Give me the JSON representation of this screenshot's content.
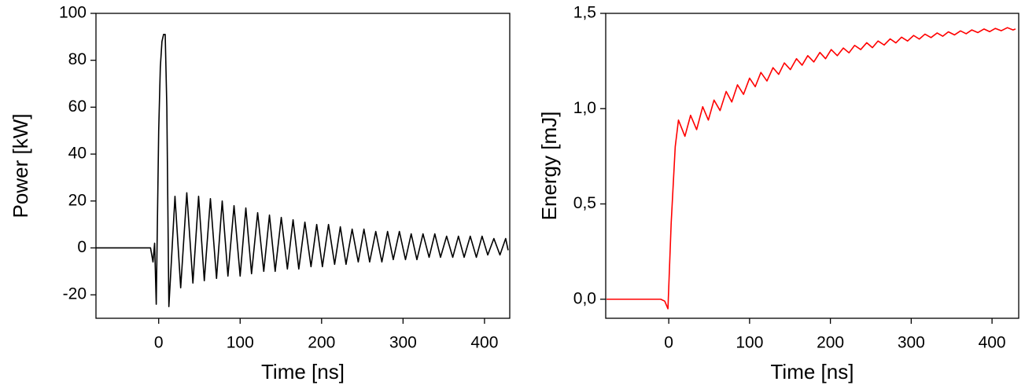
{
  "chart_data": [
    {
      "type": "line",
      "xlabel": "Time [ns]",
      "ylabel": "Power [kW]",
      "color": "#000000",
      "xlim": [
        -77,
        431
      ],
      "ylim": [
        -30,
        100
      ],
      "xticks": [
        0,
        100,
        200,
        300,
        400
      ],
      "yticks": [
        -20,
        0,
        20,
        40,
        60,
        80,
        100
      ],
      "x": [
        -77,
        -10,
        -7,
        -5,
        -3,
        0,
        2,
        4,
        6,
        8,
        10,
        12.5,
        20,
        27,
        34.5,
        42,
        49,
        56,
        63.5,
        71,
        78,
        85,
        92.5,
        100,
        107,
        114,
        121.5,
        129,
        136,
        143,
        150.5,
        158,
        165,
        172,
        179.5,
        187,
        194,
        201,
        208.5,
        216,
        223,
        230,
        237.5,
        245,
        252,
        259,
        266.5,
        274,
        281,
        288,
        295.5,
        303,
        310,
        317,
        324.5,
        332,
        339,
        346,
        353.5,
        361,
        368,
        375,
        382.5,
        390,
        397,
        404,
        411.5,
        419,
        426,
        429
      ],
      "values": [
        0,
        0,
        -6,
        2,
        -24,
        50,
        77,
        88,
        91,
        91,
        60,
        -25,
        22,
        -17,
        23.5,
        -15,
        22,
        -14,
        21,
        -13,
        20,
        -12,
        18,
        -12,
        17,
        -11,
        15,
        -10,
        14,
        -10,
        13,
        -9,
        12,
        -9,
        11,
        -8,
        10,
        -8,
        10,
        -7,
        9,
        -7,
        8,
        -6,
        8,
        -6,
        7,
        -6,
        7,
        -5,
        7,
        -5,
        6,
        -5,
        6,
        -4,
        6,
        -4,
        5,
        -4,
        5,
        -4,
        5,
        -4,
        5,
        -3,
        4,
        -3,
        4,
        -1
      ]
    },
    {
      "type": "line",
      "xlabel": "Time [ns]",
      "ylabel": "Energy [mJ]",
      "color": "#ff0000",
      "xlim": [
        -78,
        433
      ],
      "ylim": [
        -0.1,
        1.5
      ],
      "xticks": [
        0,
        100,
        200,
        300,
        400
      ],
      "yticks": [
        {
          "value": 0,
          "label": "0,0"
        },
        {
          "value": 0.5,
          "label": "0,5"
        },
        {
          "value": 1,
          "label": "1,0"
        },
        {
          "value": 1.5,
          "label": "1,5"
        }
      ],
      "x": [
        -77,
        -10,
        -5,
        -1,
        3,
        8,
        12,
        20,
        27,
        34.5,
        42,
        49,
        56,
        63.5,
        71,
        78,
        85,
        92.5,
        100,
        107,
        114,
        121.5,
        129,
        136,
        143,
        150.5,
        158,
        165,
        172,
        179.5,
        187,
        194,
        201,
        208.5,
        216,
        223,
        230,
        237.5,
        245,
        252,
        259,
        266.5,
        274,
        281,
        288,
        295.5,
        303,
        310,
        317,
        324.5,
        332,
        339,
        346,
        353.5,
        361,
        368,
        375,
        382.5,
        390,
        397,
        404,
        411.5,
        419,
        426,
        429
      ],
      "values": [
        0,
        0,
        -0.01,
        -0.05,
        0.4,
        0.8,
        0.94,
        0.855,
        0.965,
        0.89,
        1.01,
        0.94,
        1.045,
        0.99,
        1.09,
        1.035,
        1.125,
        1.075,
        1.16,
        1.115,
        1.19,
        1.145,
        1.215,
        1.18,
        1.24,
        1.205,
        1.262,
        1.228,
        1.278,
        1.245,
        1.295,
        1.262,
        1.31,
        1.278,
        1.318,
        1.293,
        1.332,
        1.31,
        1.346,
        1.32,
        1.355,
        1.334,
        1.366,
        1.345,
        1.375,
        1.355,
        1.384,
        1.365,
        1.391,
        1.373,
        1.397,
        1.38,
        1.403,
        1.387,
        1.408,
        1.393,
        1.413,
        1.399,
        1.418,
        1.404,
        1.421,
        1.409,
        1.425,
        1.413,
        1.418
      ]
    }
  ]
}
